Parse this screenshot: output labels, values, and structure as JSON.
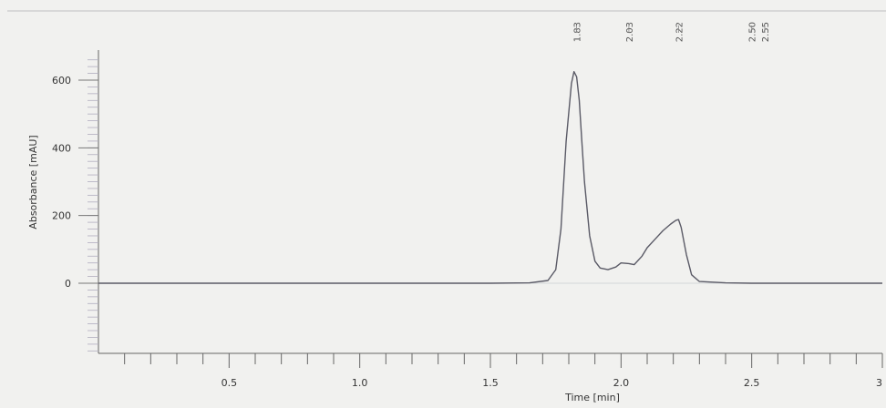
{
  "chart_data": {
    "type": "line",
    "title": "",
    "xlabel": "Time [min]",
    "ylabel": "Absorbance [mAU]",
    "xlim": [
      0,
      3.0
    ],
    "ylim": [
      -200,
      660
    ],
    "x_ticks": [
      {
        "value": 0.5,
        "label": "0.5"
      },
      {
        "value": 1.0,
        "label": "1.0"
      },
      {
        "value": 1.5,
        "label": "1.5"
      },
      {
        "value": 2.0,
        "label": "2.0"
      },
      {
        "value": 2.5,
        "label": "2.5"
      },
      {
        "value": 3.0,
        "label": "3"
      }
    ],
    "y_ticks": [
      {
        "value": 0,
        "label": "0"
      },
      {
        "value": 200,
        "label": "200"
      },
      {
        "value": 400,
        "label": "400"
      },
      {
        "value": 600,
        "label": "600"
      }
    ],
    "series": [
      {
        "x": [
          0.0,
          0.5,
          1.0,
          1.5,
          1.65,
          1.72,
          1.75,
          1.77,
          1.79,
          1.81,
          1.82,
          1.83,
          1.84,
          1.85,
          1.86,
          1.88,
          1.9,
          1.92,
          1.95,
          1.98,
          2.0,
          2.03,
          2.05,
          2.08,
          2.1,
          2.13,
          2.16,
          2.19,
          2.21,
          2.22,
          2.23,
          2.25,
          2.27,
          2.3,
          2.4,
          2.5,
          2.55,
          2.6,
          3.0
        ],
        "y": [
          0,
          0,
          0,
          0,
          1,
          8,
          40,
          160,
          420,
          590,
          625,
          610,
          540,
          420,
          300,
          140,
          65,
          45,
          40,
          48,
          60,
          58,
          55,
          80,
          105,
          130,
          155,
          175,
          186,
          188,
          165,
          85,
          25,
          5,
          1,
          0,
          0,
          0,
          0
        ]
      }
    ],
    "peak_labels": [
      "1.83",
      "2.03",
      "2.22",
      "2.50",
      "2.55"
    ],
    "peak_positions": [
      1.83,
      2.03,
      2.22,
      2.5,
      2.55
    ],
    "grid": false,
    "line_color": "#5a5a66"
  }
}
